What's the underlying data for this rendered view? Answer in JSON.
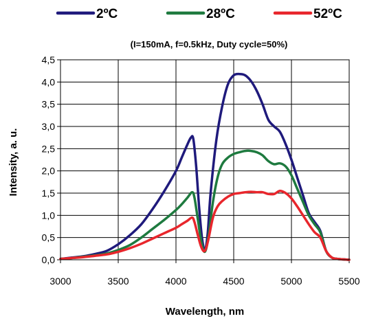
{
  "chart_data": {
    "type": "line",
    "title": "",
    "subtitle": "(I=150mA, f=0.5kHz, Duty cycle=50%)",
    "xlabel": "Wavelength,  nm",
    "ylabel": "Intensity, a. u.",
    "xlim": [
      3000,
      5500
    ],
    "ylim": [
      0,
      4.5
    ],
    "x_ticks": [
      "3000",
      "3500",
      "4000",
      "4500",
      "5000",
      "5500"
    ],
    "y_ticks": [
      "0,0",
      "0,5",
      "1,0",
      "1,5",
      "2,0",
      "2,5",
      "3,0",
      "3,5",
      "4,0",
      "4,5"
    ],
    "grid": true,
    "legend_position": "top",
    "series": [
      {
        "name": "2ºC",
        "color": "#1f1a7c",
        "points": [
          [
            3000,
            0.02
          ],
          [
            3100,
            0.05
          ],
          [
            3200,
            0.08
          ],
          [
            3300,
            0.13
          ],
          [
            3400,
            0.2
          ],
          [
            3500,
            0.35
          ],
          [
            3600,
            0.55
          ],
          [
            3700,
            0.8
          ],
          [
            3800,
            1.15
          ],
          [
            3900,
            1.55
          ],
          [
            4000,
            2.0
          ],
          [
            4050,
            2.3
          ],
          [
            4100,
            2.6
          ],
          [
            4130,
            2.75
          ],
          [
            4150,
            2.72
          ],
          [
            4175,
            2.1
          ],
          [
            4200,
            1.2
          ],
          [
            4225,
            0.5
          ],
          [
            4250,
            0.22
          ],
          [
            4275,
            0.6
          ],
          [
            4300,
            1.5
          ],
          [
            4350,
            2.7
          ],
          [
            4400,
            3.45
          ],
          [
            4450,
            3.95
          ],
          [
            4500,
            4.15
          ],
          [
            4550,
            4.18
          ],
          [
            4600,
            4.15
          ],
          [
            4650,
            4.02
          ],
          [
            4700,
            3.8
          ],
          [
            4750,
            3.5
          ],
          [
            4800,
            3.15
          ],
          [
            4850,
            3.0
          ],
          [
            4900,
            2.88
          ],
          [
            4950,
            2.6
          ],
          [
            5000,
            2.25
          ],
          [
            5050,
            1.85
          ],
          [
            5100,
            1.45
          ],
          [
            5150,
            1.05
          ],
          [
            5200,
            0.85
          ],
          [
            5250,
            0.65
          ],
          [
            5300,
            0.2
          ],
          [
            5350,
            0.05
          ],
          [
            5400,
            0.02
          ],
          [
            5500,
            0.0
          ]
        ]
      },
      {
        "name": "28ºC",
        "color": "#1e7a3f",
        "points": [
          [
            3000,
            0.02
          ],
          [
            3100,
            0.04
          ],
          [
            3200,
            0.07
          ],
          [
            3300,
            0.1
          ],
          [
            3400,
            0.14
          ],
          [
            3500,
            0.22
          ],
          [
            3600,
            0.33
          ],
          [
            3700,
            0.5
          ],
          [
            3800,
            0.7
          ],
          [
            3900,
            0.9
          ],
          [
            4000,
            1.12
          ],
          [
            4050,
            1.25
          ],
          [
            4100,
            1.4
          ],
          [
            4140,
            1.52
          ],
          [
            4160,
            1.4
          ],
          [
            4190,
            0.9
          ],
          [
            4220,
            0.4
          ],
          [
            4250,
            0.18
          ],
          [
            4280,
            0.5
          ],
          [
            4320,
            1.3
          ],
          [
            4360,
            1.85
          ],
          [
            4400,
            2.15
          ],
          [
            4450,
            2.3
          ],
          [
            4500,
            2.38
          ],
          [
            4550,
            2.42
          ],
          [
            4600,
            2.45
          ],
          [
            4650,
            2.45
          ],
          [
            4700,
            2.42
          ],
          [
            4750,
            2.35
          ],
          [
            4800,
            2.22
          ],
          [
            4850,
            2.15
          ],
          [
            4900,
            2.17
          ],
          [
            4950,
            2.1
          ],
          [
            5000,
            1.9
          ],
          [
            5050,
            1.6
          ],
          [
            5100,
            1.3
          ],
          [
            5150,
            1.0
          ],
          [
            5200,
            0.8
          ],
          [
            5250,
            0.62
          ],
          [
            5300,
            0.2
          ],
          [
            5350,
            0.05
          ],
          [
            5400,
            0.02
          ],
          [
            5500,
            0.0
          ]
        ]
      },
      {
        "name": "52ºC",
        "color": "#e8262c",
        "points": [
          [
            3000,
            0.02
          ],
          [
            3100,
            0.04
          ],
          [
            3200,
            0.06
          ],
          [
            3300,
            0.09
          ],
          [
            3400,
            0.12
          ],
          [
            3500,
            0.18
          ],
          [
            3600,
            0.26
          ],
          [
            3700,
            0.36
          ],
          [
            3800,
            0.48
          ],
          [
            3900,
            0.6
          ],
          [
            4000,
            0.72
          ],
          [
            4050,
            0.8
          ],
          [
            4100,
            0.88
          ],
          [
            4140,
            0.95
          ],
          [
            4160,
            0.85
          ],
          [
            4190,
            0.55
          ],
          [
            4220,
            0.28
          ],
          [
            4250,
            0.2
          ],
          [
            4280,
            0.45
          ],
          [
            4320,
            0.95
          ],
          [
            4360,
            1.2
          ],
          [
            4400,
            1.32
          ],
          [
            4450,
            1.42
          ],
          [
            4500,
            1.48
          ],
          [
            4550,
            1.5
          ],
          [
            4600,
            1.52
          ],
          [
            4650,
            1.53
          ],
          [
            4700,
            1.52
          ],
          [
            4750,
            1.52
          ],
          [
            4800,
            1.48
          ],
          [
            4850,
            1.48
          ],
          [
            4900,
            1.55
          ],
          [
            4950,
            1.5
          ],
          [
            5000,
            1.38
          ],
          [
            5050,
            1.2
          ],
          [
            5100,
            1.0
          ],
          [
            5150,
            0.8
          ],
          [
            5200,
            0.62
          ],
          [
            5250,
            0.5
          ],
          [
            5300,
            0.2
          ],
          [
            5350,
            0.05
          ],
          [
            5400,
            0.02
          ],
          [
            5500,
            0.0
          ]
        ]
      }
    ]
  }
}
